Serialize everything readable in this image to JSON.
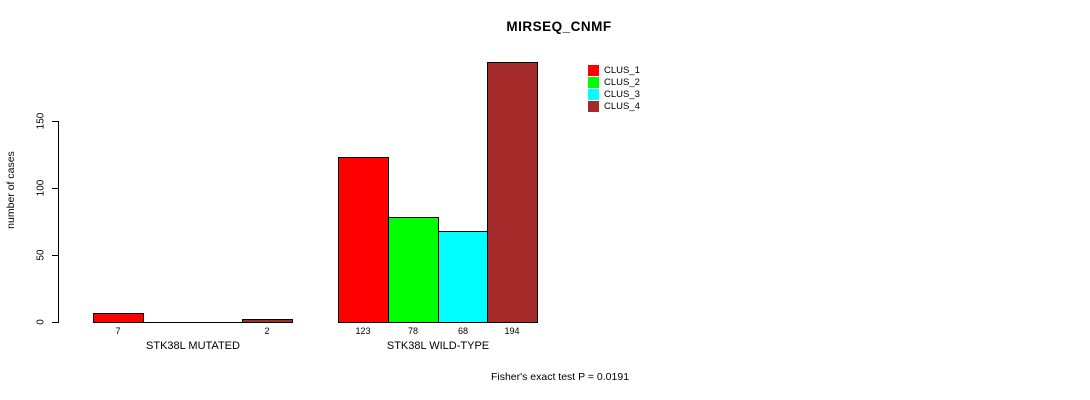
{
  "chart_data": {
    "type": "bar",
    "title": "MIRSEQ_CNMF",
    "ylabel": "number of cases",
    "xlabel": "",
    "yticks": [
      0,
      50,
      100,
      150
    ],
    "ylim": [
      0,
      200
    ],
    "grid": false,
    "legend_position": "top-right",
    "legend": [
      {
        "label": "CLUS_1",
        "color": "#FF0000"
      },
      {
        "label": "CLUS_2",
        "color": "#00FF00"
      },
      {
        "label": "CLUS_3",
        "color": "#00FFFF"
      },
      {
        "label": "CLUS_4",
        "color": "#A52A2A"
      }
    ],
    "categories": [
      "STK38L MUTATED",
      "STK38L WILD-TYPE"
    ],
    "series": [
      {
        "name": "CLUS_1",
        "values": [
          7,
          123
        ]
      },
      {
        "name": "CLUS_2",
        "values": [
          0,
          78
        ]
      },
      {
        "name": "CLUS_3",
        "values": [
          0,
          68
        ]
      },
      {
        "name": "CLUS_4",
        "values": [
          2,
          194
        ]
      }
    ],
    "groups": [
      {
        "label": "STK38L MUTATED",
        "values": [
          7,
          0,
          0,
          2
        ],
        "shown_value_labels": [
          "7",
          "2"
        ]
      },
      {
        "label": "STK38L WILD-TYPE",
        "values": [
          123,
          78,
          68,
          194
        ],
        "shown_value_labels": [
          "123",
          "78",
          "68",
          "194"
        ]
      }
    ],
    "annotation": "Fisher's exact test P = 0.0191"
  }
}
